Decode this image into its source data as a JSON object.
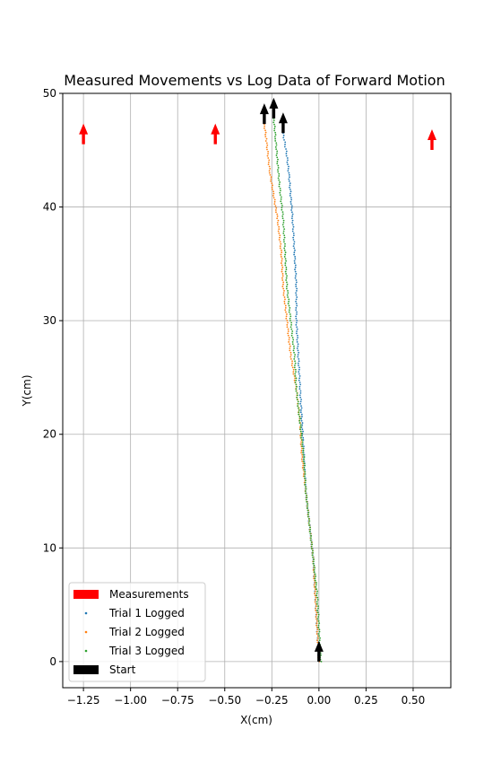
{
  "chart_data": {
    "type": "scatter",
    "title": "Measured Movements vs Log Data of Forward Motion",
    "xlabel": "X(cm)",
    "ylabel": "Y(cm)",
    "xlim": [
      -1.36,
      0.7
    ],
    "ylim": [
      -2.3,
      50
    ],
    "xticks": [
      -1.25,
      -1.0,
      -0.75,
      -0.5,
      -0.25,
      0.0,
      0.25,
      0.5
    ],
    "xtick_labels": [
      "−1.25",
      "−1.00",
      "−0.75",
      "−0.50",
      "−0.25",
      "0.00",
      "0.25",
      "0.50"
    ],
    "yticks": [
      0,
      10,
      20,
      30,
      40,
      50
    ],
    "ytick_labels": [
      "0",
      "10",
      "20",
      "30",
      "40",
      "50"
    ],
    "grid": true,
    "legend_position": "lower-left",
    "legend": [
      "Measurements",
      "Trial 1 Logged",
      "Trial 2 Logged",
      "Trial 3 Logged",
      "Start"
    ],
    "colors": {
      "measurements": "#ff0000",
      "trial1": "#1f77b4",
      "trial2": "#ff7f0e",
      "trial3": "#2ca02c",
      "start": "#000000"
    },
    "measurements": [
      {
        "x": -1.25,
        "y": 46.0
      },
      {
        "x": -0.55,
        "y": 46.0
      },
      {
        "x": 0.6,
        "y": 45.5
      }
    ],
    "start_arrows": [
      {
        "x": 0.0,
        "y": 0.0
      },
      {
        "x": -0.29,
        "y": 47.3
      },
      {
        "x": -0.24,
        "y": 47.8
      },
      {
        "x": -0.19,
        "y": 46.5
      }
    ],
    "series": [
      {
        "name": "Trial 1 Logged",
        "color": "#1f77b4",
        "x": [
          0.0,
          -0.01,
          -0.02,
          -0.03,
          -0.05,
          -0.07,
          -0.08,
          -0.09,
          -0.1,
          -0.11,
          -0.12,
          -0.12,
          -0.13,
          -0.14,
          -0.15,
          -0.16,
          -0.17,
          -0.18,
          -0.19
        ],
        "y": [
          0,
          3,
          6,
          9,
          12,
          15,
          18,
          21,
          24,
          27,
          30,
          33,
          36,
          39,
          41,
          43,
          44.5,
          45.5,
          46.5
        ]
      },
      {
        "name": "Trial 2 Logged",
        "color": "#ff7f0e",
        "x": [
          0.0,
          -0.01,
          -0.02,
          -0.03,
          -0.05,
          -0.07,
          -0.09,
          -0.1,
          -0.12,
          -0.15,
          -0.17,
          -0.19,
          -0.2,
          -0.22,
          -0.24,
          -0.26,
          -0.27,
          -0.28,
          -0.29
        ],
        "y": [
          0,
          3,
          6,
          9,
          12,
          15,
          18,
          21,
          24,
          27,
          30,
          33,
          36,
          39,
          41,
          43,
          44.5,
          46,
          47.3
        ]
      },
      {
        "name": "Trial 3 Logged",
        "color": "#2ca02c",
        "x": [
          0.01,
          0.0,
          -0.01,
          -0.03,
          -0.05,
          -0.07,
          -0.08,
          -0.1,
          -0.12,
          -0.13,
          -0.15,
          -0.17,
          -0.18,
          -0.19,
          -0.21,
          -0.22,
          -0.23,
          -0.24
        ],
        "y": [
          0,
          3,
          6,
          9,
          12,
          15,
          18,
          21,
          24,
          27,
          30,
          33,
          36,
          39,
          42,
          44,
          46,
          47.8
        ]
      }
    ]
  }
}
